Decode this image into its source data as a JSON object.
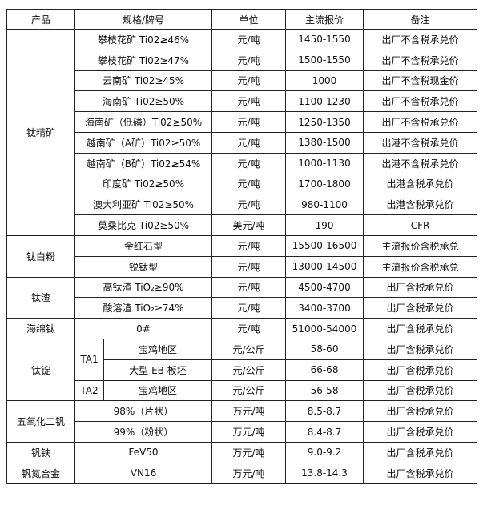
{
  "headers": [
    "产品",
    "规格/牌号",
    "单位",
    "主流报价",
    "备注"
  ],
  "groups": [
    {
      "product": "钛精矿",
      "rows": [
        {
          "spec": "攀枝花矿 Ti02≥46%",
          "unit": "元/吨",
          "price": "1450-1550",
          "note": "出厂不含税承兑价"
        },
        {
          "spec": "攀枝花矿 Ti02≥47%",
          "unit": "元/吨",
          "price": "1500-1550",
          "note": "出厂不含税承兑价"
        },
        {
          "spec": "云南矿 Ti02≥45%",
          "unit": "元/吨",
          "price": "1000",
          "note": "出厂不含税现金价"
        },
        {
          "spec": "海南矿 Ti02≥50%",
          "unit": "元/吨",
          "price": "1100-1230",
          "note": "出厂不含税承兑价"
        },
        {
          "spec": "海南矿（低磷）Ti02≥50%",
          "unit": "元/吨",
          "price": "1250-1350",
          "note": "出厂不含税承兑价"
        },
        {
          "spec": "越南矿（A矿）Ti02≥50%",
          "unit": "元/吨",
          "price": "1380-1500",
          "note": "出港不含税承兑价"
        },
        {
          "spec": "越南矿（B矿）Ti02≥54%",
          "unit": "元/吨",
          "price": "1000-1130",
          "note": "出港不含税承兑价"
        },
        {
          "spec": "印度矿 Ti02≥50%",
          "unit": "元/吨",
          "price": "1700-1800",
          "note": "出港含税承兑价"
        },
        {
          "spec": "澳大利亚矿 Ti02≥50%",
          "unit": "元/吨",
          "price": "980-1100",
          "note": "出港含税承兑价"
        },
        {
          "spec": "莫桑比克 Ti02≥50%",
          "unit": "美元/吨",
          "price": "190",
          "note": "CFR"
        }
      ]
    },
    {
      "product": "钛白粉",
      "rows": [
        {
          "spec": "金红石型",
          "unit": "元/吨",
          "price": "15500-16500",
          "note": "主流报价含税承兑"
        },
        {
          "spec": "锐钛型",
          "unit": "元/吨",
          "price": "13000-14500",
          "note": "主流报价含税承兑"
        }
      ]
    },
    {
      "product": "钛渣",
      "rows": [
        {
          "spec": "高钛渣 TiO₂≥90%",
          "unit": "元/吨",
          "price": "4500-4700",
          "note": "出厂含税承兑价"
        },
        {
          "spec": "酸溶渣 TiO₂≥74%",
          "unit": "元/吨",
          "price": "3400-3700",
          "note": "出厂含税承兑价"
        }
      ]
    },
    {
      "product": "海绵钛",
      "rows": [
        {
          "spec": "0#",
          "unit": "元/吨",
          "price": "51000-54000",
          "note": "出厂含税承兑价"
        }
      ]
    },
    {
      "product": "钛锭",
      "rows": [
        {
          "grade": "TA1",
          "spec": "宝鸡地区",
          "unit": "元/公斤",
          "price": "58-60",
          "note": "出厂含税承兑价"
        },
        {
          "grade": "TA1",
          "spec": "大型 EB 板坯",
          "unit": "元/公斤",
          "price": "66-68",
          "note": "出厂含税承兑价"
        },
        {
          "grade": "TA2",
          "spec": "宝鸡地区",
          "unit": "元/公斤",
          "price": "56-58",
          "note": "出厂含税承兑价"
        }
      ]
    },
    {
      "product": "五氧化二钒",
      "rows": [
        {
          "spec": "98%（片状）",
          "unit": "万元/吨",
          "price": "8.5-8.7",
          "note": "出厂含税承兑价"
        },
        {
          "spec": "99%（粉状）",
          "unit": "万元/吨",
          "price": "8.4-8.7",
          "note": "出厂含税承兑价"
        }
      ]
    },
    {
      "product": "钒铁",
      "rows": [
        {
          "spec": "FeV50",
          "unit": "万元/吨",
          "price": "9.0-9.2",
          "note": "出厂含税承兑价"
        }
      ]
    },
    {
      "product": "钒氮合金",
      "rows": [
        {
          "spec": "VN16",
          "unit": "万元/吨",
          "price": "13.8-14.3",
          "note": "出厂含税承兑价"
        }
      ]
    }
  ]
}
